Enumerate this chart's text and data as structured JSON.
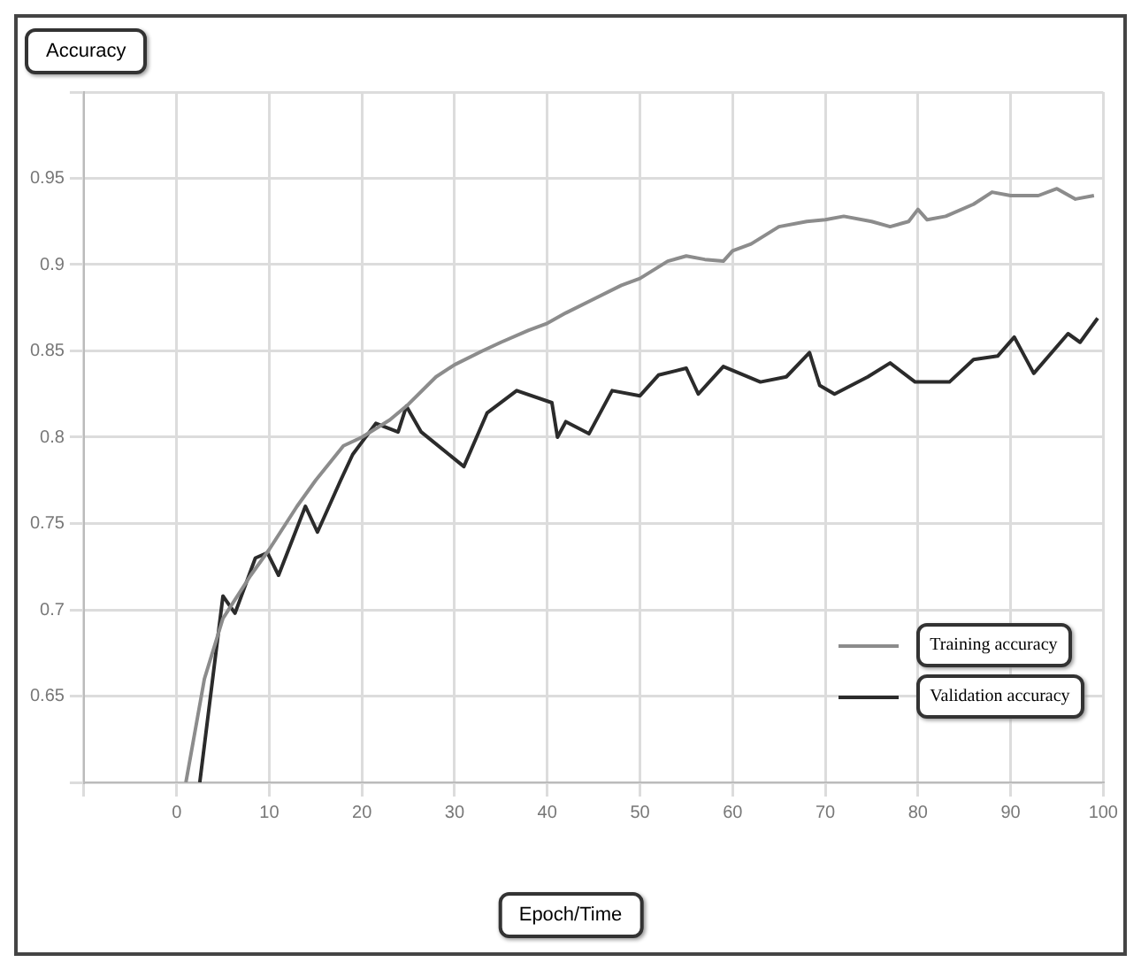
{
  "chart_data": {
    "type": "line",
    "title": "Accuracy",
    "xlabel": "Epoch/Time",
    "xlim": [
      -10,
      100
    ],
    "xticks": [
      {
        "value": -10,
        "label": null
      },
      {
        "value": 0,
        "label": "0"
      },
      10,
      20,
      30,
      40,
      50,
      60,
      70,
      80,
      90,
      100
    ],
    "ylim": [
      0.6,
      1.0
    ],
    "yticks": [
      {
        "value": 0.6,
        "label": null
      },
      0.65,
      0.7,
      0.75,
      0.8,
      0.85,
      0.9,
      0.95,
      {
        "value": 1.0,
        "label": null
      }
    ],
    "grid": true,
    "legend": "bottom right",
    "marker": "none",
    "line_style": "solid",
    "series": [
      {
        "name": "Training accuracy",
        "color": "#8c8c8c",
        "x": [
          1,
          3,
          5,
          8,
          10,
          13,
          15,
          18,
          20,
          23,
          25,
          28,
          30,
          33,
          35,
          38,
          40,
          42,
          45,
          48,
          50,
          53,
          55,
          57,
          59,
          60,
          62,
          65,
          68,
          70,
          72,
          75,
          77,
          79,
          80,
          81,
          83,
          86,
          88,
          90,
          93,
          95,
          97,
          99
        ],
        "values": [
          0.6,
          0.66,
          0.695,
          0.72,
          0.735,
          0.76,
          0.775,
          0.795,
          0.8,
          0.81,
          0.819,
          0.835,
          0.842,
          0.85,
          0.855,
          0.862,
          0.866,
          0.872,
          0.88,
          0.888,
          0.892,
          0.902,
          0.905,
          0.903,
          0.902,
          0.908,
          0.912,
          0.922,
          0.925,
          0.926,
          0.928,
          0.925,
          0.922,
          0.925,
          0.932,
          0.926,
          0.928,
          0.935,
          0.942,
          0.94,
          0.94,
          0.944,
          0.938,
          0.94
        ]
      },
      {
        "name": "Validation accuracy",
        "color": "#2b2b2b",
        "x": [
          2.5,
          5,
          6.3,
          8.5,
          9.8,
          11,
          13.9,
          15.2,
          17.7,
          19,
          21.5,
          23.9,
          24.8,
          26.4,
          31,
          33.5,
          36.7,
          40.5,
          41.1,
          42,
          44.5,
          47,
          50,
          52,
          55,
          56.3,
          59,
          63,
          65.8,
          68.3,
          69.4,
          71,
          74.6,
          77,
          79.7,
          83.4,
          86,
          88.6,
          90.4,
          92.5,
          96.2,
          97.5,
          99.4
        ],
        "values": [
          0.6,
          0.708,
          0.698,
          0.73,
          0.733,
          0.72,
          0.76,
          0.745,
          0.775,
          0.79,
          0.808,
          0.803,
          0.818,
          0.803,
          0.783,
          0.814,
          0.827,
          0.82,
          0.8,
          0.809,
          0.802,
          0.827,
          0.824,
          0.836,
          0.84,
          0.825,
          0.841,
          0.832,
          0.835,
          0.849,
          0.83,
          0.825,
          0.835,
          0.843,
          0.832,
          0.832,
          0.845,
          0.847,
          0.858,
          0.837,
          0.86,
          0.855,
          0.869
        ]
      }
    ]
  }
}
